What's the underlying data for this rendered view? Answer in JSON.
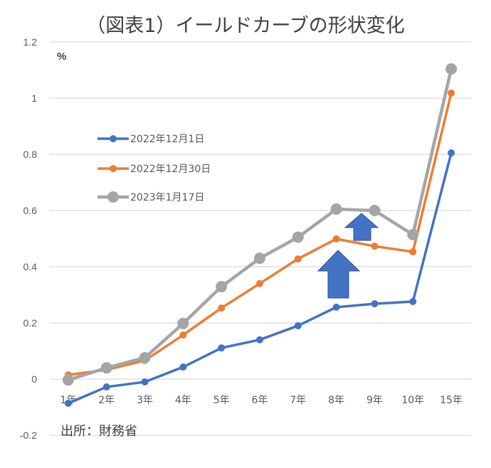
{
  "chart_data": {
    "type": "line",
    "title": "（図表1）イールドカーブの形状変化",
    "xlabel": "",
    "ylabel": "%",
    "ylim": [
      -0.2,
      1.2
    ],
    "yticks": [
      -0.2,
      0,
      0.2,
      0.4,
      0.6,
      0.8,
      1,
      1.2
    ],
    "ytick_labels": [
      "-0.2",
      "0",
      "0.2",
      "0.4",
      "0.6",
      "0.8",
      "1",
      "1.2"
    ],
    "grid": true,
    "legend_position": "upper-left (inside plot)",
    "categories": [
      "1年",
      "2年",
      "3年",
      "4年",
      "5年",
      "6年",
      "7年",
      "8年",
      "9年",
      "10年",
      "15年"
    ],
    "series": [
      {
        "name": "2022年12月1日",
        "color": "#4472C4",
        "marker_size": 5,
        "values": [
          -0.086,
          -0.028,
          -0.01,
          0.043,
          0.111,
          0.14,
          0.19,
          0.256,
          0.268,
          0.276,
          0.805
        ]
      },
      {
        "name": "2022年12月30日",
        "color": "#ED7D31",
        "marker_size": 5,
        "values": [
          0.015,
          0.033,
          0.066,
          0.157,
          0.253,
          0.34,
          0.428,
          0.499,
          0.473,
          0.453,
          1.018
        ]
      },
      {
        "name": "2023年1月17日",
        "color": "#A5A5A5",
        "marker_size": 8,
        "values": [
          -0.003,
          0.04,
          0.076,
          0.198,
          0.329,
          0.43,
          0.505,
          0.605,
          0.6,
          0.514,
          1.104
        ]
      }
    ],
    "annotations": [
      {
        "type": "up-arrow",
        "size": "large",
        "color": "#4472C4",
        "near": "8年",
        "between": [
          "2022年12月1日",
          "2022年12月30日"
        ]
      },
      {
        "type": "up-arrow",
        "size": "small",
        "color": "#4472C4",
        "near": "8年-9年",
        "between": [
          "2022年12月30日",
          "2023年1月17日"
        ]
      }
    ],
    "source": "出所：財務省"
  }
}
